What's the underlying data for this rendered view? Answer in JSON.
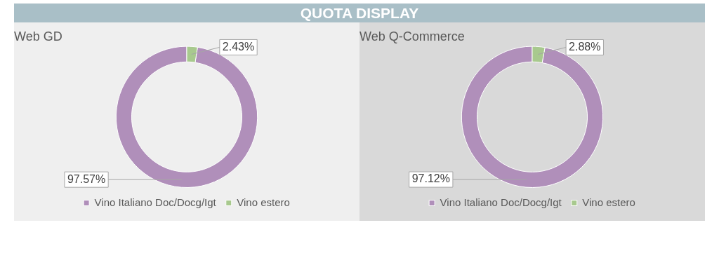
{
  "chart_data": [
    {
      "type": "donut",
      "title": "QUOTA DISPLAY",
      "subtitle": "Web GD",
      "categories": [
        "Vino Italiano Doc/Docg/Igt",
        "Vino estero"
      ],
      "values": [
        97.57,
        2.43
      ],
      "colors": [
        "#b08fba",
        "#a8c98e"
      ],
      "value_labels": [
        "97.57%",
        "2.43%"
      ],
      "legend": "bottom"
    },
    {
      "type": "donut",
      "subtitle": "Web Q-Commerce",
      "categories": [
        "Vino Italiano Doc/Docg/Igt",
        "Vino estero"
      ],
      "values": [
        97.12,
        2.88
      ],
      "colors": [
        "#b08fba",
        "#a8c98e"
      ],
      "value_labels": [
        "97.12%",
        "2.88%"
      ],
      "legend": "bottom"
    }
  ]
}
